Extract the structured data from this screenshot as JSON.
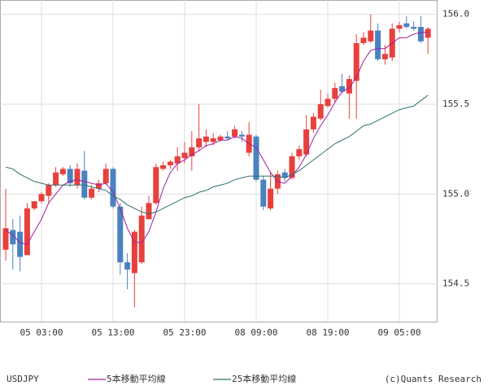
{
  "chart_data": {
    "type": "candlestick",
    "categories": [
      null,
      null,
      null,
      null,
      null,
      "05 03:00",
      null,
      null,
      null,
      null,
      null,
      null,
      null,
      null,
      null,
      "05 13:00",
      null,
      null,
      null,
      null,
      null,
      null,
      null,
      null,
      null,
      "05 23:00",
      null,
      null,
      null,
      null,
      null,
      null,
      null,
      null,
      null,
      "08 09:00",
      null,
      null,
      null,
      null,
      null,
      null,
      null,
      null,
      null,
      "08 19:00",
      null,
      null,
      null,
      null,
      null,
      null,
      null,
      null,
      null,
      "09 05:00",
      null,
      null,
      null,
      null
    ],
    "candles": {
      "name": "USDJPY",
      "up_color": "#e8403c",
      "down_color": "#4a82bf",
      "open": [
        154.69,
        154.8,
        154.79,
        154.66,
        154.92,
        154.96,
        154.99,
        155.05,
        155.11,
        155.14,
        155.05,
        155.13,
        154.98,
        155.03,
        155.06,
        155.14,
        154.93,
        154.62,
        154.56,
        154.62,
        154.86,
        154.95,
        155.14,
        155.16,
        155.17,
        155.2,
        155.21,
        155.26,
        155.29,
        155.29,
        155.3,
        155.32,
        155.32,
        155.33,
        155.23,
        155.32,
        155.08,
        154.92,
        155.03,
        155.12,
        155.09,
        155.21,
        155.22,
        155.36,
        155.42,
        155.49,
        155.53,
        155.6,
        155.56,
        155.63,
        155.84,
        155.85,
        155.91,
        155.75,
        155.76,
        155.92,
        155.95,
        155.93,
        155.93,
        155.87
      ],
      "high": [
        155.03,
        154.86,
        154.88,
        154.95,
        154.96,
        155.01,
        155.06,
        155.15,
        155.15,
        155.16,
        155.17,
        155.24,
        155.05,
        155.08,
        155.17,
        155.15,
        154.95,
        154.67,
        154.8,
        154.93,
        154.99,
        155.17,
        155.18,
        155.19,
        155.26,
        155.29,
        155.35,
        155.5,
        155.36,
        155.34,
        155.33,
        155.35,
        155.38,
        155.35,
        155.4,
        155.33,
        155.1,
        155.12,
        155.13,
        155.14,
        155.23,
        155.27,
        155.44,
        155.45,
        155.58,
        155.56,
        155.62,
        155.67,
        155.66,
        155.89,
        155.9,
        156.0,
        155.95,
        155.83,
        155.95,
        155.96,
        155.99,
        155.96,
        155.99,
        155.93
      ],
      "low": [
        154.63,
        154.58,
        154.57,
        154.66,
        154.91,
        154.95,
        154.95,
        155.04,
        155.1,
        155.04,
        155.03,
        154.97,
        154.97,
        155.01,
        155.05,
        154.92,
        154.55,
        154.47,
        154.37,
        154.61,
        154.86,
        154.94,
        155.13,
        155.14,
        155.13,
        155.17,
        155.13,
        155.24,
        155.26,
        155.27,
        155.29,
        155.3,
        155.31,
        155.29,
        155.21,
        155.07,
        154.91,
        154.91,
        155.0,
        155.07,
        155.08,
        155.19,
        155.21,
        155.34,
        155.41,
        155.48,
        155.51,
        155.56,
        155.42,
        155.42,
        155.83,
        155.84,
        155.74,
        155.72,
        155.74,
        155.9,
        155.92,
        155.91,
        155.84,
        155.78
      ],
      "close": [
        154.81,
        154.72,
        154.65,
        154.92,
        154.96,
        155.0,
        155.05,
        155.12,
        155.14,
        155.06,
        155.14,
        154.98,
        155.03,
        155.06,
        155.14,
        154.93,
        154.62,
        154.58,
        154.79,
        154.88,
        154.95,
        155.15,
        155.16,
        155.18,
        155.21,
        155.23,
        155.26,
        155.31,
        155.32,
        155.31,
        155.32,
        155.31,
        155.36,
        155.32,
        155.33,
        155.08,
        154.93,
        155.03,
        155.11,
        155.09,
        155.21,
        155.25,
        155.36,
        155.43,
        155.5,
        155.53,
        155.59,
        155.57,
        155.64,
        155.84,
        155.87,
        155.91,
        155.75,
        155.78,
        155.92,
        155.94,
        155.93,
        155.92,
        155.85,
        155.92
      ]
    },
    "series": [
      {
        "name": "5本移動平均線",
        "color": "#a020a0",
        "values": [
          154.8,
          154.77,
          154.73,
          154.72,
          154.79,
          154.86,
          154.95,
          155.0,
          155.05,
          155.07,
          155.08,
          155.07,
          155.06,
          155.05,
          155.06,
          155.01,
          154.92,
          154.81,
          154.73,
          154.73,
          154.79,
          154.9,
          155.03,
          155.12,
          155.17,
          155.19,
          155.22,
          155.24,
          155.27,
          155.28,
          155.3,
          155.3,
          155.32,
          155.31,
          155.28,
          155.26,
          155.19,
          155.12,
          155.07,
          155.06,
          155.1,
          155.15,
          155.22,
          155.31,
          155.38,
          155.44,
          155.51,
          155.57,
          155.59,
          155.65,
          155.74,
          155.8,
          155.81,
          155.81,
          155.84,
          155.87,
          155.87,
          155.89,
          155.9,
          155.9
        ]
      },
      {
        "name": "25本移動平均線",
        "color": "#2f6f6f",
        "values": [
          155.15,
          155.14,
          155.11,
          155.09,
          155.07,
          155.06,
          155.05,
          155.05,
          155.05,
          155.05,
          155.05,
          155.05,
          155.04,
          155.03,
          155.02,
          154.99,
          154.97,
          154.94,
          154.92,
          154.9,
          154.89,
          154.9,
          154.92,
          154.94,
          154.96,
          154.98,
          154.99,
          155.01,
          155.02,
          155.04,
          155.05,
          155.06,
          155.08,
          155.09,
          155.1,
          155.1,
          155.1,
          155.1,
          155.1,
          155.09,
          155.11,
          155.13,
          155.16,
          155.19,
          155.22,
          155.25,
          155.28,
          155.3,
          155.32,
          155.35,
          155.38,
          155.39,
          155.41,
          155.43,
          155.45,
          155.47,
          155.48,
          155.49,
          155.52,
          155.55
        ]
      }
    ],
    "ylim": [
      154.29,
      156.08
    ],
    "yticks": [
      {
        "value": 154.5,
        "label": "154.5"
      },
      {
        "value": 155,
        "label": "155.0"
      },
      {
        "value": 155.5,
        "label": "155.5"
      },
      {
        "value": 156,
        "label": "156.0"
      }
    ],
    "grid": true,
    "source": "(c)Quants Research"
  }
}
